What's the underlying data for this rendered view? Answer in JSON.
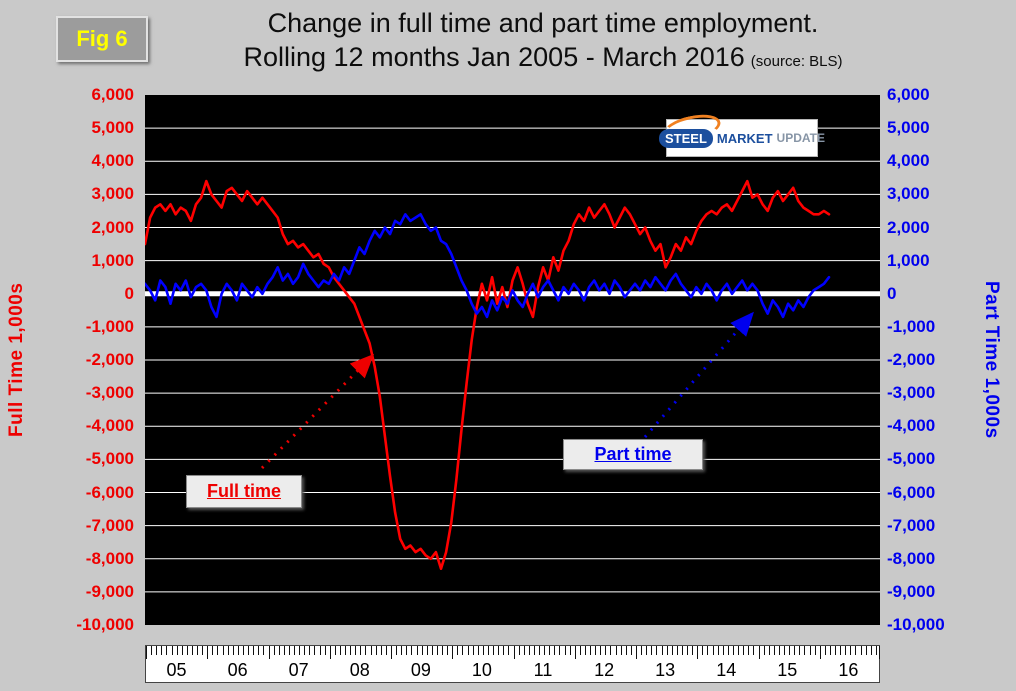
{
  "figure_label": "Fig 6",
  "title": {
    "line1": "Change in full time and part time employment.",
    "line2": "Rolling 12 months Jan 2005 - March 2016",
    "source": "(source: BLS)"
  },
  "logo": {
    "steel": "STEEL",
    "market": "MARKET",
    "update": "UPDATE"
  },
  "axes": {
    "left_title": "Full Time 1,000s",
    "right_title": "Part Time 1,000s",
    "y_tick_labels": [
      "6,000",
      "5,000",
      "4,000",
      "3,000",
      "2,000",
      "1,000",
      "0",
      "-1,000",
      "-2,000",
      "-3,000",
      "-4,000",
      "-5,000",
      "-6,000",
      "-7,000",
      "-8,000",
      "-9,000",
      "-10,000"
    ],
    "x_tick_labels": [
      "05",
      "06",
      "07",
      "08",
      "09",
      "10",
      "11",
      "12",
      "13",
      "14",
      "15",
      "16"
    ]
  },
  "annotations": {
    "full_time_label": "Full time",
    "part_time_label": "Part time"
  },
  "colors": {
    "full_time": "#ff0000",
    "part_time": "#0000ee",
    "plot_background": "#000000",
    "page_background": "#c9c9c9",
    "grid": "#ffffff",
    "fig_label_text": "#ffff00"
  },
  "chart_data": {
    "type": "line",
    "title": "Change in full time and part time employment. Rolling 12 months Jan 2005 - March 2016",
    "source": "BLS",
    "x_unit": "month",
    "x_start": "2005-01",
    "x_end": "2016-03",
    "axis_total_months": 144,
    "ylim": [
      -10000,
      6000
    ],
    "y_gridline_step": 1000,
    "ylabel_left": "Full Time 1,000s",
    "ylabel_right": "Part Time 1,000s",
    "legend_position": "annotated-in-plot",
    "grid": "horizontal-only",
    "series": [
      {
        "name": "Full time",
        "color": "#ff0000",
        "values": [
          1500,
          2300,
          2600,
          2700,
          2500,
          2700,
          2400,
          2600,
          2500,
          2200,
          2700,
          2900,
          3400,
          3000,
          2800,
          2600,
          3100,
          3200,
          3000,
          2800,
          3100,
          2900,
          2700,
          2900,
          2700,
          2500,
          2300,
          1800,
          1500,
          1600,
          1400,
          1500,
          1300,
          1100,
          1200,
          900,
          800,
          500,
          300,
          100,
          -100,
          -300,
          -700,
          -1100,
          -1500,
          -2200,
          -3100,
          -4300,
          -5500,
          -6600,
          -7400,
          -7700,
          -7600,
          -7800,
          -7700,
          -7900,
          -8000,
          -7800,
          -8300,
          -7800,
          -6900,
          -5600,
          -4100,
          -2700,
          -1400,
          -400,
          300,
          -200,
          500,
          -300,
          200,
          -400,
          400,
          800,
          300,
          -300,
          -700,
          200,
          800,
          400,
          1100,
          700,
          1300,
          1600,
          2100,
          2400,
          2200,
          2600,
          2300,
          2500,
          2700,
          2400,
          2000,
          2300,
          2600,
          2400,
          2100,
          1800,
          2000,
          1600,
          1300,
          1500,
          800,
          1100,
          1500,
          1300,
          1700,
          1500,
          1900,
          2200,
          2400,
          2500,
          2400,
          2600,
          2700,
          2500,
          2800,
          3100,
          3400,
          2900,
          3000,
          2700,
          2500,
          2900,
          3100,
          2800,
          3000,
          3200,
          2800,
          2600,
          2500,
          2400,
          2400,
          2500,
          2400
        ]
      },
      {
        "name": "Part time",
        "color": "#0000ff",
        "values": [
          300,
          100,
          -200,
          400,
          200,
          -300,
          300,
          100,
          400,
          -100,
          200,
          300,
          100,
          -400,
          -700,
          0,
          300,
          100,
          -200,
          300,
          100,
          -100,
          200,
          0,
          300,
          500,
          800,
          400,
          600,
          300,
          500,
          900,
          600,
          400,
          200,
          400,
          300,
          600,
          400,
          800,
          600,
          1000,
          1400,
          1200,
          1600,
          1900,
          1700,
          2000,
          1800,
          2200,
          2100,
          2400,
          2200,
          2300,
          2400,
          2100,
          1900,
          2000,
          1600,
          1500,
          1200,
          800,
          400,
          100,
          -300,
          -600,
          -400,
          -700,
          -200,
          -500,
          -100,
          -300,
          100,
          -200,
          -400,
          0,
          300,
          -100,
          200,
          400,
          100,
          -200,
          200,
          0,
          300,
          100,
          -200,
          200,
          400,
          100,
          300,
          0,
          400,
          200,
          -100,
          100,
          300,
          100,
          400,
          200,
          500,
          300,
          100,
          400,
          600,
          300,
          100,
          -100,
          200,
          0,
          300,
          100,
          -200,
          100,
          300,
          0,
          200,
          400,
          100,
          300,
          100,
          -300,
          -600,
          -200,
          -400,
          -700,
          -300,
          -500,
          -200,
          -400,
          -100,
          100,
          200,
          300,
          500
        ]
      }
    ]
  }
}
